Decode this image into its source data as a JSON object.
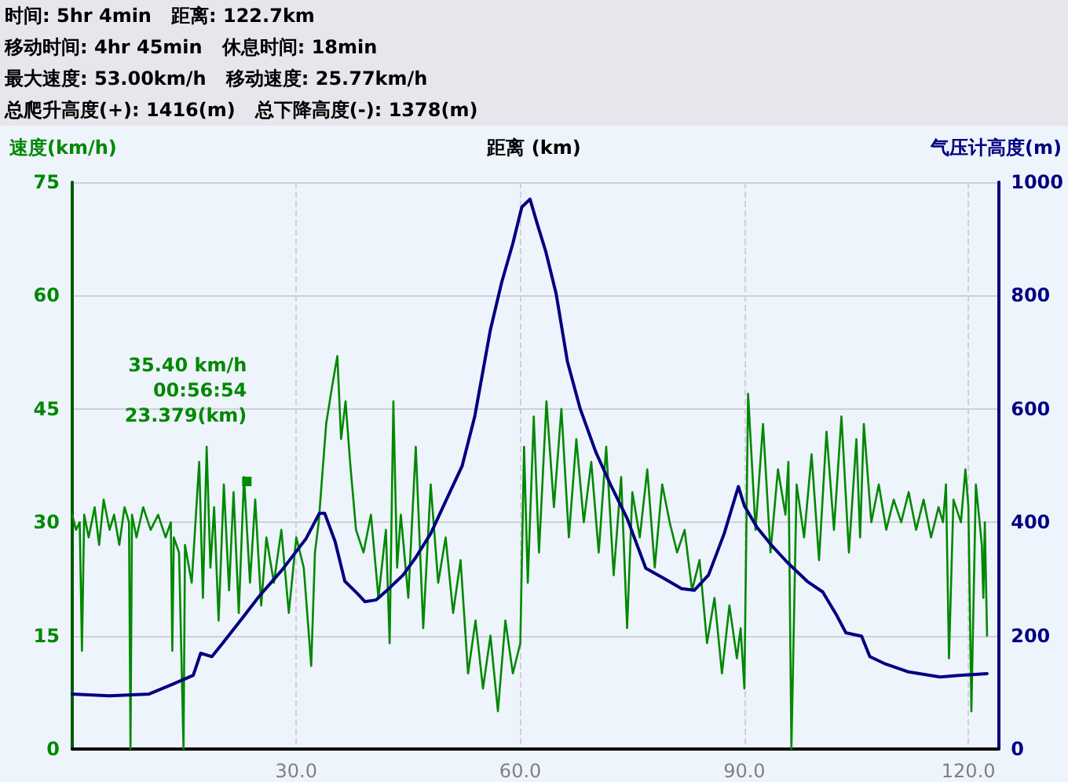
{
  "chart_data": {
    "type": "line",
    "annotations": [
      "时间: 5hr 4min   距离: 122.7km",
      "移动时间: 4hr 45min   休息时间: 18min",
      "最大速度: 53.00km/h   移动速度: 25.77km/h",
      "总爬升高度(+): 1416(m)   总下降高度(-): 1378(m)",
      {
        "text": "35.40 km/h\n00:56:54\n23.379(km)",
        "x": 23.379,
        "y": 35.4
      }
    ],
    "xlabel": "距离 (km)",
    "ylabel": "速度(km/h)",
    "y2label": "气压计高度(m)",
    "xlim": [
      0,
      124
    ],
    "xticks": [
      {
        "value": 30,
        "label": "30.0"
      },
      {
        "value": 60,
        "label": "60.0"
      },
      {
        "value": 90,
        "label": "90.0"
      },
      {
        "value": 120,
        "label": "120.0"
      }
    ],
    "ylim": [
      0,
      75
    ],
    "yticks": [
      0,
      15,
      30,
      45,
      60,
      75
    ],
    "y2lim": [
      0,
      1000
    ],
    "y2ticks": [
      0,
      200,
      400,
      600,
      800,
      1000
    ],
    "grid": true,
    "marker": "none",
    "line_style": "solid",
    "series": [
      {
        "color": "#008800",
        "x": [
          0,
          0.5,
          1,
          1.3,
          1.6,
          2.2,
          3,
          3.6,
          4.2,
          5,
          5.6,
          6.3,
          7,
          7.6,
          7.8,
          8,
          8.6,
          9.5,
          10.5,
          11.5,
          12.5,
          13.2,
          13.4,
          13.6,
          14.3,
          14.9,
          15.1,
          16,
          17,
          17.5,
          18,
          18.5,
          19,
          19.6,
          20.3,
          21,
          21.6,
          22.3,
          23,
          23.8,
          24.5,
          25.3,
          26,
          27,
          28,
          29,
          30,
          31,
          32,
          32.5,
          33,
          34,
          34.8,
          35.5,
          36,
          36.6,
          37.2,
          38,
          39,
          40,
          41,
          42,
          42.5,
          43,
          43.5,
          44,
          45,
          46,
          47,
          48,
          49,
          50,
          51,
          52,
          53,
          54,
          55,
          56,
          57,
          58,
          59,
          60,
          60.5,
          61,
          61.8,
          62.5,
          63.5,
          64.5,
          65.5,
          66.5,
          67.5,
          68.5,
          69.5,
          70.5,
          71.5,
          72.5,
          73.5,
          74.3,
          75,
          76,
          77,
          78,
          79,
          80,
          81,
          82,
          83,
          84,
          85,
          86,
          87,
          88,
          89,
          89.5,
          90,
          90.5,
          91.5,
          92.5,
          93.5,
          94.5,
          95.5,
          95.9,
          96.3,
          97,
          98,
          99,
          100,
          101,
          102,
          103,
          104,
          105,
          105.5,
          106,
          107,
          108,
          109,
          110,
          111,
          112,
          113,
          114,
          115,
          116,
          116.6,
          117,
          117.4,
          118,
          119,
          119.6,
          120,
          120.4,
          121,
          121.5,
          121.8,
          122,
          122.2,
          122.5
        ],
        "values": [
          31,
          29,
          30,
          13,
          31,
          28,
          32,
          27,
          33,
          29,
          31,
          27,
          32,
          30,
          0,
          31,
          28,
          32,
          29,
          31,
          28,
          30,
          13,
          28,
          26,
          0,
          27,
          22,
          38,
          20,
          40,
          24,
          32,
          17,
          35,
          21,
          34,
          18,
          36,
          22,
          33,
          19,
          28,
          22,
          29,
          18,
          28,
          24,
          11,
          26,
          30,
          43,
          48,
          52,
          41,
          46,
          38,
          29,
          26,
          31,
          20,
          29,
          14,
          46,
          24,
          31,
          20,
          40,
          16,
          35,
          22,
          28,
          18,
          25,
          10,
          17,
          8,
          15,
          5,
          17,
          10,
          14,
          40,
          22,
          44,
          26,
          46,
          32,
          45,
          28,
          41,
          30,
          38,
          26,
          40,
          23,
          36,
          16,
          34,
          28,
          37,
          24,
          35,
          30,
          26,
          29,
          21,
          25,
          14,
          20,
          10,
          19,
          12,
          16,
          8,
          47,
          29,
          43,
          26,
          37,
          31,
          38,
          0,
          35,
          28,
          39,
          25,
          42,
          29,
          44,
          26,
          41,
          28,
          43,
          30,
          35,
          29,
          33,
          30,
          34,
          29,
          33,
          28,
          32,
          30,
          35,
          12,
          33,
          30,
          37,
          32,
          5,
          35,
          30,
          27,
          20,
          30,
          15
        ]
      },
      {
        "color": "#000080",
        "axis": "y2",
        "x": [
          0,
          5,
          10.3,
          13.4,
          16.2,
          17.2,
          18.7,
          20.1,
          22.9,
          25,
          28.1,
          31.3,
          33.1,
          33.8,
          35.2,
          36.5,
          38.2,
          39.2,
          40.7,
          42.4,
          44.3,
          46,
          48,
          50.1,
          52.2,
          53.9,
          56,
          57.5,
          59,
          60.2,
          61.3,
          62.3,
          63.4,
          64.8,
          66.3,
          68,
          70.1,
          72.2,
          74.3,
          76.8,
          79.1,
          81.6,
          83.3,
          85.2,
          87.3,
          89.2,
          90,
          91.7,
          93.6,
          95.7,
          98.4,
          100.5,
          102.4,
          103.6,
          105.7,
          106.8,
          108.9,
          112,
          116.2,
          118.7,
          122.5
        ],
        "values": [
          97,
          94,
          97,
          114,
          130,
          169,
          163,
          186,
          233,
          269,
          316,
          371,
          416,
          416,
          366,
          296,
          274,
          260,
          263,
          283,
          307,
          338,
          380,
          440,
          499,
          587,
          740,
          823,
          892,
          956,
          970,
          925,
          878,
          803,
          684,
          601,
          524,
          463,
          407,
          319,
          302,
          283,
          280,
          307,
          380,
          463,
          429,
          391,
          360,
          330,
          296,
          277,
          235,
          205,
          199,
          163,
          150,
          136,
          127,
          130,
          133
        ]
      }
    ]
  }
}
